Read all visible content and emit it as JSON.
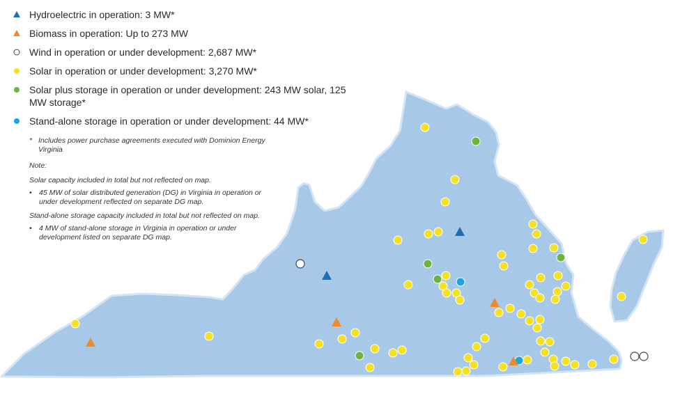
{
  "legend": {
    "items": [
      {
        "symbol": "triangle",
        "color": "#1f6db3",
        "label": "Hydroelectric in operation: 3 MW*"
      },
      {
        "symbol": "triangle",
        "color": "#ee8a2b",
        "label": "Biomass in operation: Up to 273 MW"
      },
      {
        "symbol": "circle-outline",
        "color": "#444444",
        "label": "Wind in operation or under development: 2,687 MW*"
      },
      {
        "symbol": "circle",
        "color": "#f5e121",
        "label": "Solar in operation or under development: 3,270 MW*"
      },
      {
        "symbol": "circle",
        "color": "#6db33f",
        "label": "Solar plus storage in operation or under development: 243 MW solar, 125 MW storage*"
      },
      {
        "symbol": "circle",
        "color": "#1ea3e1",
        "label": "Stand-alone storage in operation or under development: 44 MW*"
      }
    ]
  },
  "notes": {
    "footnote_mark": "*",
    "footnote": "Includes power purchase agreements executed with Dominion Energy Virginia",
    "note_heading": "Note:",
    "solar_note": "Solar capacity included in total but not reflected on map.",
    "solar_bullet": "45 MW of solar distributed generation (DG) in Virginia in operation or under development  reflected on separate DG map.",
    "storage_note": "Stand-alone storage capacity included in total but not reflected on map.",
    "storage_bullet": "4 MW of stand-alone storage in Virginia in operation or under development listed on separate DG map.",
    "bullet_mark": "•"
  },
  "map": {
    "region_color": "#a8c8e8",
    "outline_color": "#d3e4f4"
  }
}
